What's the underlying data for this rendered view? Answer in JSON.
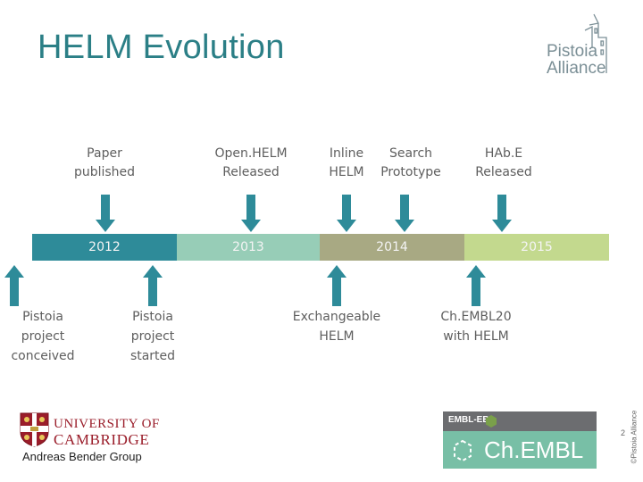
{
  "slide": {
    "title": "HELM Evolution",
    "page_number": "2",
    "copyright": "©Pistoia Alliance"
  },
  "logo": {
    "line1": "Pistoia",
    "line2": "Alliance"
  },
  "timeline": {
    "years": [
      "2012",
      "2013",
      "2014",
      "2015"
    ],
    "colors": [
      "#2e8b99",
      "#97cdb7",
      "#a8a983",
      "#c3d98e"
    ],
    "arrow_color": "#2e8b99"
  },
  "events_above": [
    {
      "text": "Paper\npublished"
    },
    {
      "text": "Open.HELM\nReleased"
    },
    {
      "text": "Inline\nHELM"
    },
    {
      "text": "Search\nPrototype"
    },
    {
      "text": "HAb.E\nReleased"
    }
  ],
  "events_below": [
    {
      "text": "Pistoia\nproject\nconceived"
    },
    {
      "text": "Pistoia\nproject\nstarted"
    },
    {
      "text": "Exchangeable\nHELM"
    },
    {
      "text": "Ch.EMBL20\nwith HELM"
    }
  ],
  "cambridge": {
    "line1": "UNIVERSITY OF",
    "line2": "CAMBRIDGE",
    "group": "Andreas Bender Group"
  },
  "chembl": {
    "top": "EMBL-EBI",
    "label": "Ch.EMBL"
  }
}
